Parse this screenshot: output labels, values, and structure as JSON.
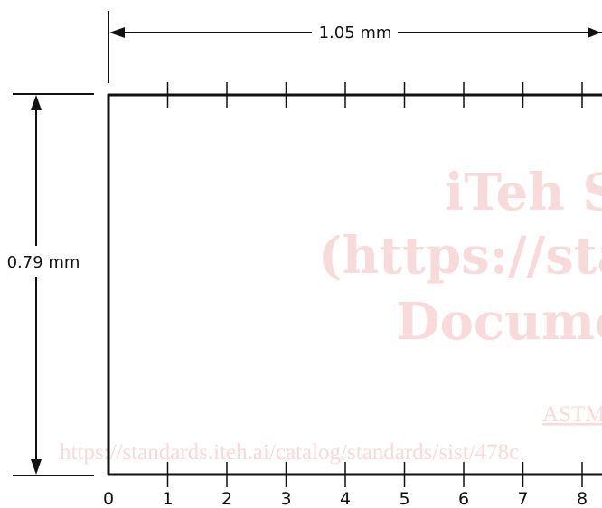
{
  "dimensions": {
    "width_label": "1.05 mm",
    "height_label": "0.79 mm"
  },
  "scale": {
    "tick_labels": [
      "0",
      "1",
      "2",
      "3",
      "4",
      "5",
      "6",
      "7",
      "8"
    ]
  },
  "watermark": {
    "line1": "iTeh St",
    "line2": "(https://stan",
    "line3": "Docume",
    "link_text": "ASTM",
    "url": "https://standards.iteh.ai/catalog/standards/sist/478c",
    "color": "#f8dada"
  },
  "colors": {
    "stroke": "#111111",
    "background": "#ffffff"
  }
}
